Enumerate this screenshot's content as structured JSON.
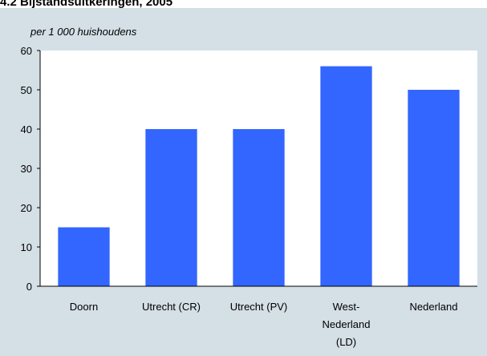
{
  "chart_data": {
    "type": "bar",
    "title": "4.2 Bijstandsuitkeringen, 2005",
    "subtitle": "per 1 000 huishoudens",
    "categories": [
      "Doorn",
      "Utrecht (CR)",
      "Utrecht (PV)",
      "West-Nederland (LD)",
      "Nederland"
    ],
    "values": [
      15,
      40,
      40,
      56,
      50
    ],
    "color": "#3366ff",
    "ylim": [
      0,
      60
    ],
    "yticks": [
      0,
      10,
      20,
      30,
      40,
      50,
      60
    ],
    "grid": false
  }
}
